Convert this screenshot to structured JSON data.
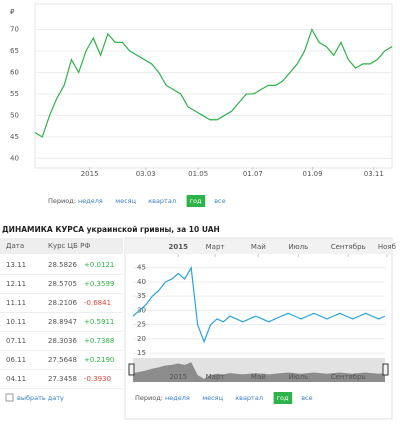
{
  "chart_data": [
    {
      "type": "line",
      "y_unit_label": "₽",
      "color": "#2eb24a",
      "values": [
        46,
        45,
        50,
        54,
        57,
        63,
        60,
        65,
        68,
        64,
        69,
        67,
        67,
        65,
        64,
        63,
        62,
        60,
        57,
        56,
        55,
        52,
        51,
        50,
        49,
        49,
        50,
        51,
        53,
        55,
        55,
        56,
        57,
        57,
        58,
        60,
        62,
        65,
        70,
        67,
        66,
        64,
        67,
        63,
        61,
        62,
        62,
        63,
        65,
        66
      ],
      "xlim": [
        0,
        49
      ],
      "xticks": [
        {
          "value": 7.5,
          "label": "2015"
        },
        {
          "value": 15.2,
          "label": "03.03"
        },
        {
          "value": 22.4,
          "label": "01.05"
        },
        {
          "value": 29.9,
          "label": "01.07"
        },
        {
          "value": 38.1,
          "label": "01.09"
        },
        {
          "value": 46.5,
          "label": "03.11"
        }
      ],
      "ylim": [
        38,
        75
      ],
      "yticks": [
        40,
        45,
        50,
        55,
        60,
        65,
        70
      ],
      "grid": true
    },
    {
      "type": "line",
      "title": "ДИНАМИКА КУРСА украинской гривны, за 10 UAH",
      "color": "#29a3dd",
      "values": [
        28,
        30,
        32,
        35,
        37,
        40,
        41,
        43,
        41,
        45,
        25,
        19,
        25,
        27,
        26,
        28,
        27,
        26,
        27,
        28,
        27,
        26,
        27,
        28,
        29,
        28,
        27,
        28,
        29,
        28,
        27,
        28,
        29,
        28,
        27,
        28,
        29,
        28,
        27,
        28
      ],
      "xlim": [
        0,
        39
      ],
      "xticks": [
        {
          "value": 7,
          "label": "2015"
        },
        {
          "value": 12.7,
          "label": "Март"
        },
        {
          "value": 19.4,
          "label": "Май"
        },
        {
          "value": 25.6,
          "label": "Июль"
        },
        {
          "value": 33.3,
          "label": "Сентябрь"
        },
        {
          "value": 39.3,
          "label": "Нояб"
        }
      ],
      "ylim": [
        14,
        47
      ],
      "yticks": [
        15,
        20,
        25,
        30,
        35,
        40,
        45
      ],
      "grid": true
    }
  ],
  "periods_top": {
    "label": "Период:",
    "options": [
      "неделя",
      "месяц",
      "квартал",
      "год",
      "все"
    ],
    "active": 3
  },
  "periods_bottom": {
    "label": "Период:",
    "options": [
      "неделя",
      "месяц",
      "квартал",
      "год",
      "все"
    ],
    "active": 3
  },
  "table": {
    "header": [
      "Дата",
      "Курс ЦБ РФ"
    ],
    "rows": [
      [
        "13.11",
        "28.5826",
        "+0.0121"
      ],
      [
        "12.11",
        "28.5705",
        "+0.3599"
      ],
      [
        "11.11",
        "28.2106",
        "-0.6841"
      ],
      [
        "10.11",
        "28.8947",
        "+0.5911"
      ],
      [
        "07.11",
        "28.3036",
        "+0.7388"
      ],
      [
        "06.11",
        "27.5648",
        "+0.2190"
      ],
      [
        "04.11",
        "27.3458",
        "-0.3930"
      ]
    ],
    "date_picker": "выбрать дату"
  }
}
